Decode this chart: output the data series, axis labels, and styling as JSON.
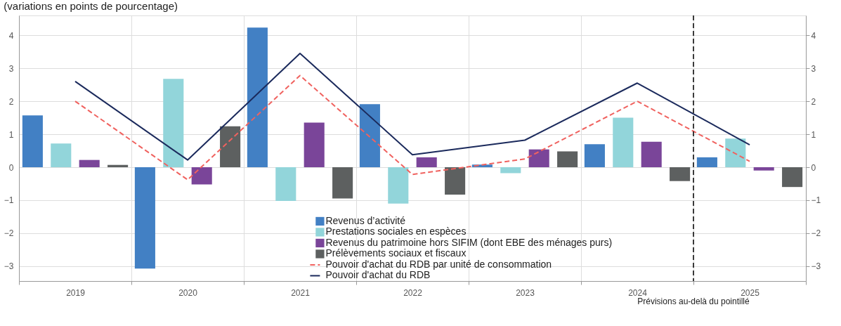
{
  "chart_data": {
    "type": "bar",
    "title": "(variations en points de pourcentage)",
    "categories": [
      "2019",
      "2020",
      "2021",
      "2022",
      "2023",
      "2024",
      "2025"
    ],
    "series": [
      {
        "name": "Revenus d’activité",
        "color": "#4280c4",
        "values": [
          1.57,
          -3.07,
          4.23,
          1.91,
          0.08,
          0.7,
          0.3
        ]
      },
      {
        "name": "Prestations sociales en espèces",
        "color": "#92d5da",
        "values": [
          0.72,
          2.68,
          -1.02,
          -1.1,
          -0.18,
          1.5,
          0.87
        ]
      },
      {
        "name": "Revenus du patrimoine hors SIFIM (dont EBE des ménages purs)",
        "color": "#7a4599",
        "values": [
          0.22,
          -0.52,
          1.35,
          0.3,
          0.54,
          0.77,
          -0.1
        ]
      },
      {
        "name": "Prélèvements sociaux et fiscaux",
        "color": "#5d6060",
        "values": [
          0.07,
          1.24,
          -0.95,
          -0.83,
          0.48,
          -0.42,
          -0.6
        ]
      },
      {
        "name": "Pouvoir d'achat du RDB par unité de consommation",
        "type": "line",
        "line_style": "dashed",
        "color": "#f0625f",
        "values": [
          2.0,
          -0.38,
          2.78,
          -0.22,
          0.25,
          2.0,
          0.18
        ]
      },
      {
        "name": "Pouvoir d'achat du RDB",
        "type": "line",
        "line_style": "solid",
        "color": "#1b2a5c",
        "values": [
          2.6,
          0.22,
          3.45,
          0.38,
          0.82,
          2.55,
          0.68
        ]
      }
    ],
    "ylim": [
      -3.45,
      4.6
    ],
    "yticks": [
      -3,
      -2,
      -1,
      0,
      1,
      2,
      3,
      4
    ],
    "y2lim": [
      -3.45,
      4.6
    ],
    "y2ticks": [
      -3,
      -2,
      -1,
      0,
      1,
      2,
      3,
      4
    ],
    "ref_lines": [
      {
        "axis": "x",
        "value": "2025",
        "label": "Prévisions au-delà du pointillé",
        "line_style": "dashed",
        "color": "#000000"
      }
    ],
    "grid": true,
    "legend": "bottom right"
  }
}
